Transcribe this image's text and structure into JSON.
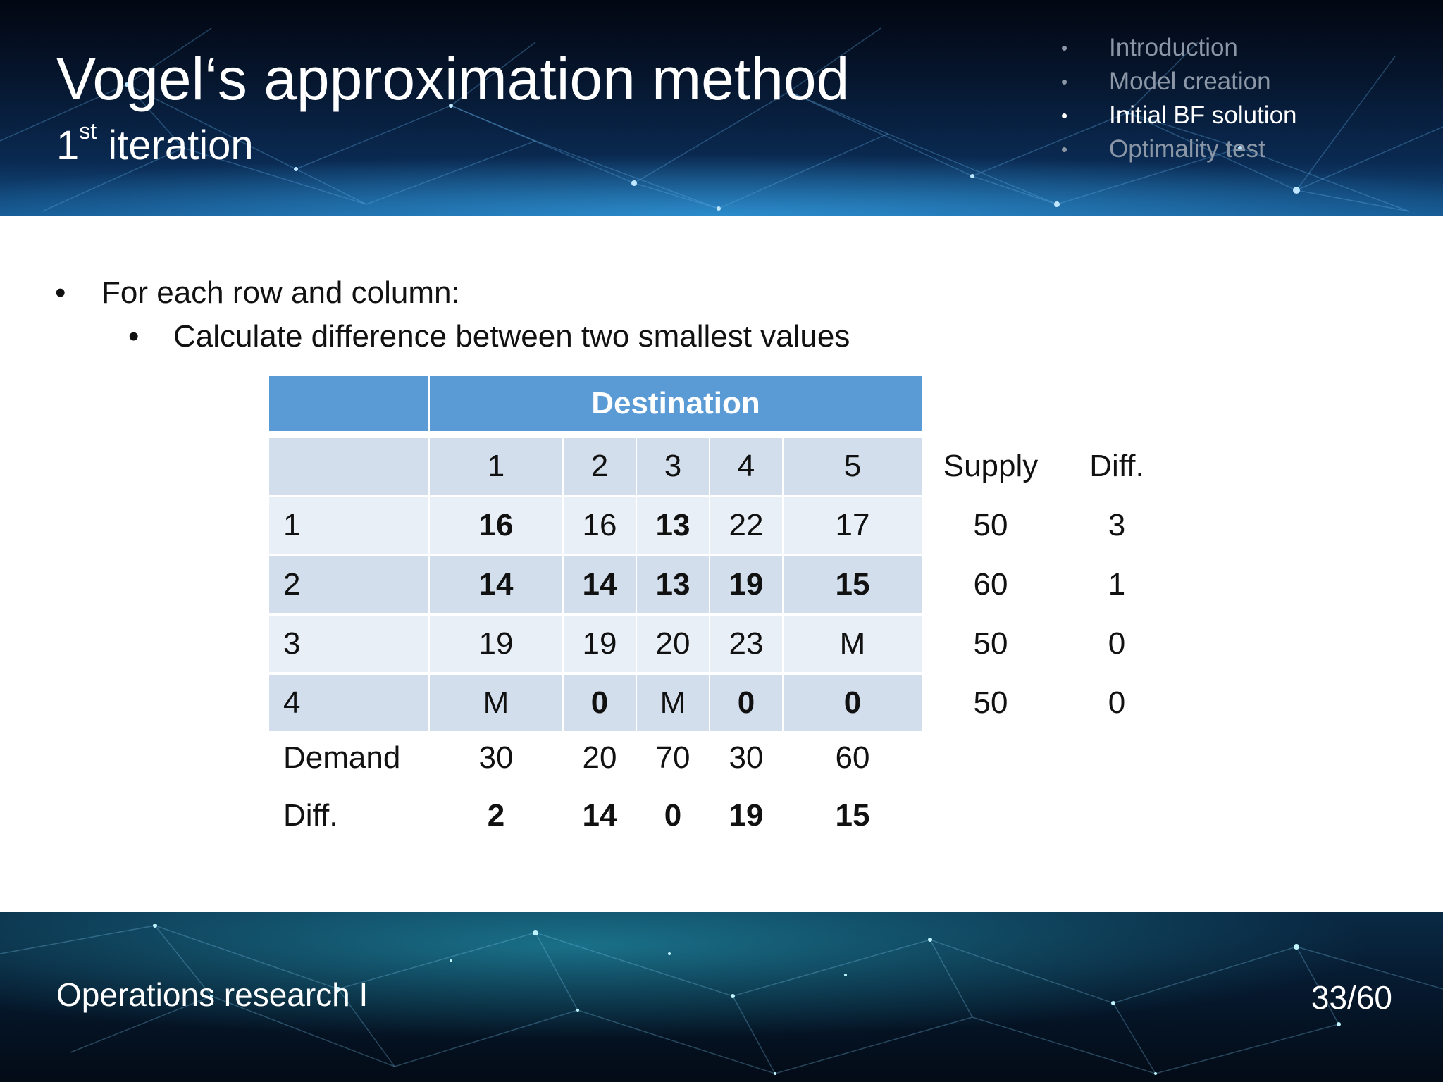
{
  "header": {
    "title": "Vogel‘s approximation method",
    "subtitle_number": "1",
    "subtitle_superscript": "st",
    "subtitle_text": " iteration"
  },
  "toc": {
    "items": [
      {
        "label": "Introduction",
        "active": false
      },
      {
        "label": "Model creation",
        "active": false
      },
      {
        "label": "Initial BF solution",
        "active": true
      },
      {
        "label": "Optimality test",
        "active": false
      }
    ]
  },
  "content": {
    "bullet_glyph": "•",
    "bullet_1": "For each row and column:",
    "bullet_2": "Calculate difference between two smallest values"
  },
  "table": {
    "group_header": "Destination",
    "column_headers": [
      "1",
      "2",
      "3",
      "4",
      "5"
    ],
    "supply_header": "Supply",
    "diff_header": "Diff.",
    "rows": [
      {
        "label": "1",
        "cells": [
          {
            "v": "16",
            "b": true
          },
          {
            "v": "16",
            "b": false
          },
          {
            "v": "13",
            "b": true
          },
          {
            "v": "22",
            "b": false
          },
          {
            "v": "17",
            "b": false
          }
        ],
        "supply": "50",
        "diff": "3"
      },
      {
        "label": "2",
        "cells": [
          {
            "v": "14",
            "b": true
          },
          {
            "v": "14",
            "b": true
          },
          {
            "v": "13",
            "b": true
          },
          {
            "v": "19",
            "b": true
          },
          {
            "v": "15",
            "b": true
          }
        ],
        "supply": "60",
        "diff": "1"
      },
      {
        "label": "3",
        "cells": [
          {
            "v": "19",
            "b": false
          },
          {
            "v": "19",
            "b": false
          },
          {
            "v": "20",
            "b": false
          },
          {
            "v": "23",
            "b": false
          },
          {
            "v": "M",
            "b": false
          }
        ],
        "supply": "50",
        "diff": "0"
      },
      {
        "label": "4",
        "cells": [
          {
            "v": "M",
            "b": false
          },
          {
            "v": "0",
            "b": true
          },
          {
            "v": "M",
            "b": false
          },
          {
            "v": "0",
            "b": true
          },
          {
            "v": "0",
            "b": true
          }
        ],
        "supply": "50",
        "diff": "0"
      }
    ],
    "demand_label": "Demand",
    "demand": [
      "30",
      "20",
      "70",
      "30",
      "60"
    ],
    "col_diff_label": "Diff.",
    "col_diff": [
      "2",
      "14",
      "0",
      "19",
      "15"
    ]
  },
  "footer": {
    "course": "Operations research I",
    "page": "33/60"
  },
  "colors": {
    "header_blue": "#5b9bd5",
    "row_dark": "#d2deec",
    "row_light": "#e9eff7",
    "toc_inactive": "#8b97a6",
    "toc_active": "#ffffff"
  }
}
